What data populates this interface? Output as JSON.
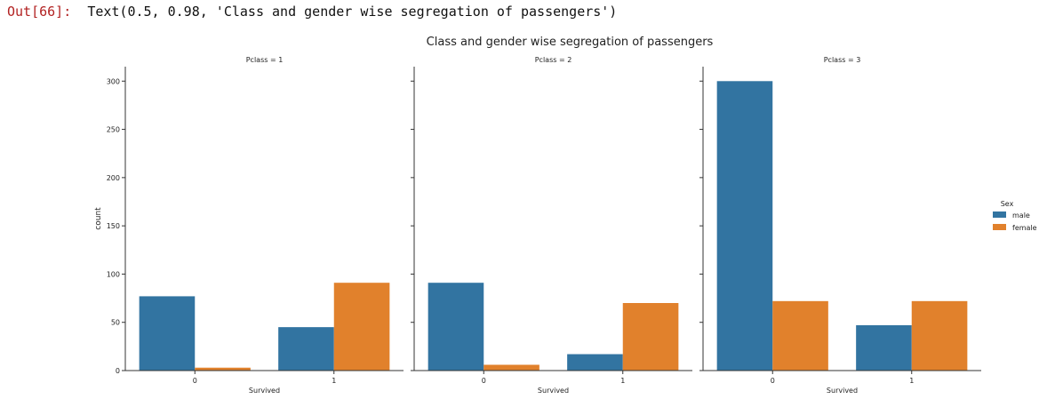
{
  "output": {
    "prompt": "Out[66]:",
    "text": "Text(0.5, 0.98, 'Class and gender wise segregation of passengers')"
  },
  "chart_data": {
    "type": "bar",
    "title": "Class and gender wise segregation of passengers",
    "ylabel": "count",
    "ylim": [
      0,
      315
    ],
    "yticks": [
      0,
      50,
      100,
      150,
      200,
      250,
      300
    ],
    "categories": [
      "0",
      "1"
    ],
    "legend": {
      "title": "Sex",
      "placement": "right",
      "entries": [
        {
          "name": "male",
          "color": "#3274a1"
        },
        {
          "name": "female",
          "color": "#e1812c"
        }
      ]
    },
    "facets": [
      {
        "title": "Pclass = 1",
        "xlabel": "Survived",
        "series": [
          {
            "name": "male",
            "values": [
              77,
              45
            ]
          },
          {
            "name": "female",
            "values": [
              3,
              91
            ]
          }
        ]
      },
      {
        "title": "Pclass = 2",
        "xlabel": "Survived",
        "series": [
          {
            "name": "male",
            "values": [
              91,
              17
            ]
          },
          {
            "name": "female",
            "values": [
              6,
              70
            ]
          }
        ]
      },
      {
        "title": "Pclass = 3",
        "xlabel": "Survived",
        "series": [
          {
            "name": "male",
            "values": [
              300,
              47
            ]
          },
          {
            "name": "female",
            "values": [
              72,
              72
            ]
          }
        ]
      }
    ]
  }
}
